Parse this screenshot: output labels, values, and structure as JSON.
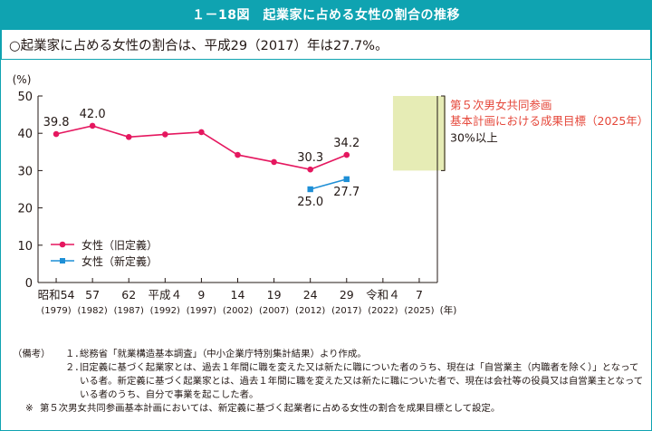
{
  "header": {
    "title": "１－18図　起業家に占める女性の割合の推移"
  },
  "summary": {
    "text": "○起業家に占める女性の割合は、平成29（2017）年は27.7%。"
  },
  "chart_data": {
    "type": "line",
    "title": "起業家に占める女性の割合の推移",
    "ylabel": "(%)",
    "xlabel": "(年)",
    "ylim": [
      0,
      50
    ],
    "yticks": [
      "0",
      "10",
      "20",
      "30",
      "40",
      "50"
    ],
    "categories": [
      {
        "era": "昭和54",
        "year": "(1979)"
      },
      {
        "era": "57",
        "year": "(1982)"
      },
      {
        "era": "62",
        "year": "(1987)"
      },
      {
        "era": "平成４",
        "year": "(1992)"
      },
      {
        "era": "9",
        "year": "(1997)"
      },
      {
        "era": "14",
        "year": "(2002)"
      },
      {
        "era": "19",
        "year": "(2007)"
      },
      {
        "era": "24",
        "year": "(2012)"
      },
      {
        "era": "29",
        "year": "(2017)"
      },
      {
        "era": "令和４",
        "year": "(2022)"
      },
      {
        "era": "7",
        "year": "(2025)"
      }
    ],
    "series": [
      {
        "name": "女性（旧定義）",
        "color": "#e5175f",
        "marker": "circle",
        "values": [
          39.8,
          42.0,
          39.0,
          39.7,
          40.3,
          34.2,
          32.3,
          30.3,
          34.2,
          null,
          null
        ],
        "labels": [
          "39.8",
          "42.0",
          null,
          null,
          null,
          null,
          null,
          "30.3",
          "34.2",
          null,
          null
        ]
      },
      {
        "name": "女性（新定義）",
        "color": "#1e8fd6",
        "marker": "square",
        "values": [
          null,
          null,
          null,
          null,
          null,
          null,
          null,
          25.0,
          27.7,
          null,
          null
        ],
        "labels": [
          null,
          null,
          null,
          null,
          null,
          null,
          null,
          "25.0",
          "27.7",
          null,
          null
        ]
      }
    ],
    "target": {
      "category_index": 10,
      "from": 30,
      "to": 50,
      "color": "#e6ecb5",
      "text_line1": "第５次男女共同参画",
      "text_line2": "基本計画における成果目標（2025年）",
      "text_line3": "30%以上",
      "text_color": "#e5473a"
    },
    "legend_position": "bottom-left"
  },
  "notes": {
    "label": "（備考）",
    "items": [
      {
        "num": "１．",
        "text": "総務省「就業構造基本調査」（中小企業庁特別集計結果）より作成。"
      },
      {
        "num": "２．",
        "text": "旧定義に基づく起業家とは、過去１年間に職を変えた又は新たに職についた者のうち、現在は「自営業主（内職者を除く）」となっている者。新定義に基づく起業家とは、過去１年間に職を変えた又は新たに職についた者で、現在は会社等の役員又は自営業主となっている者のうち、自分で事業を起こした者。"
      }
    ],
    "footnote_mark": "※",
    "footnote": "第５次男女共同参画基本計画においては、新定義に基づく起業者に占める女性の割合を成果目標として設定。"
  }
}
